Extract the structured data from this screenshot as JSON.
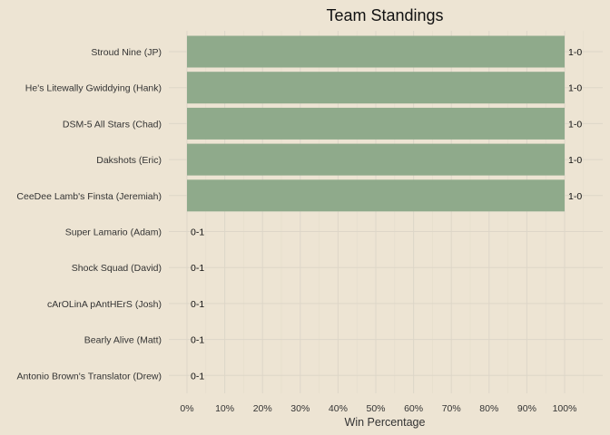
{
  "chart_data": {
    "type": "bar",
    "orientation": "horizontal",
    "title": "Team Standings",
    "xlabel": "Win Percentage",
    "ylabel": "",
    "xlim": [
      0,
      1
    ],
    "x_ticks": [
      "0%",
      "10%",
      "20%",
      "30%",
      "40%",
      "50%",
      "60%",
      "70%",
      "80%",
      "90%",
      "100%"
    ],
    "categories": [
      "Stroud Nine (JP)",
      "He's Litewally Gwiddying (Hank)",
      "DSM-5 All Stars (Chad)",
      "Dakshots (Eric)",
      "CeeDee Lamb's Finsta (Jeremiah)",
      "Super Lamario (Adam)",
      "Shock Squad (David)",
      "cArOLinA pAntHErS (Josh)",
      "Bearly Alive (Matt)",
      "Antonio Brown's Translator (Drew)"
    ],
    "values": [
      1,
      1,
      1,
      1,
      1,
      0,
      0,
      0,
      0,
      0
    ],
    "value_labels": [
      "1-0",
      "1-0",
      "1-0",
      "1-0",
      "1-0",
      "0-1",
      "0-1",
      "0-1",
      "0-1",
      "0-1"
    ],
    "bar_color": "#8faa8b",
    "grid": true,
    "legend": "none"
  }
}
